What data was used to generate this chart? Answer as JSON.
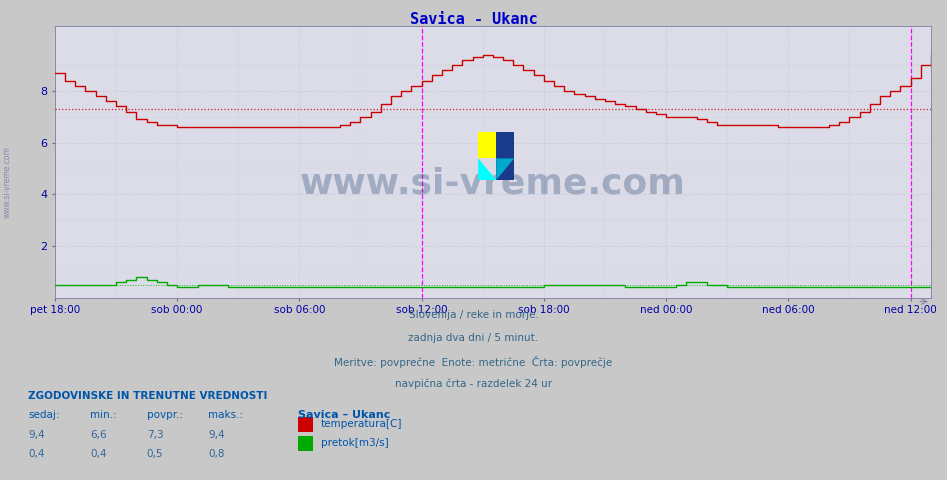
{
  "title": "Savica - Ukanc",
  "title_color": "#0000cc",
  "bg_color": "#c8c8c8",
  "plot_bg_color": "#dcdce8",
  "xlabels": [
    "pet 18:00",
    "sob 00:00",
    "sob 06:00",
    "sob 12:00",
    "sob 18:00",
    "ned 00:00",
    "ned 06:00",
    "ned 12:00"
  ],
  "xtick_positions": [
    0,
    72,
    144,
    216,
    288,
    360,
    432,
    504
  ],
  "ylim": [
    0,
    10.5
  ],
  "yticks": [
    2,
    4,
    6,
    8
  ],
  "tick_color": "#0000aa",
  "avg_temp": 7.3,
  "avg_flow": 0.5,
  "vline1_x": 216,
  "vline2_x": 504,
  "watermark": "www.si-vreme.com",
  "watermark_color": "#1a3a6b",
  "watermark_alpha": 0.3,
  "subtitle_lines": [
    "Slovenija / reke in morje.",
    "zadnja dva dni / 5 minut.",
    "Meritve: povprečne  Enote: metrične  Črta: povprečje",
    "navpična črta - razdelek 24 ur"
  ],
  "stats_header": "ZGODOVINSKE IN TRENUTNE VREDNOSTI",
  "stats_col_headers": [
    "sedaj:",
    "min.:",
    "povpr.:",
    "maks.:"
  ],
  "stats_row1": [
    "9,4",
    "6,6",
    "7,3",
    "9,4"
  ],
  "stats_row2": [
    "0,4",
    "0,4",
    "0,5",
    "0,8"
  ],
  "legend_labels": [
    "temperatura[C]",
    "pretok[m3/s]"
  ],
  "legend_colors": [
    "#cc0000",
    "#00aa00"
  ],
  "station_label": "Savica – Ukanc",
  "temp_color": "#cc0000",
  "flow_color": "#00aa00",
  "avg_temp_line_color": "#cc0000",
  "avg_flow_line_color": "#00aa00",
  "temp_data_x": [
    0,
    6,
    12,
    18,
    24,
    30,
    36,
    42,
    48,
    54,
    60,
    66,
    72,
    78,
    84,
    90,
    96,
    102,
    108,
    114,
    120,
    126,
    132,
    138,
    144,
    150,
    156,
    162,
    168,
    174,
    180,
    186,
    192,
    198,
    204,
    210,
    216,
    222,
    228,
    234,
    240,
    246,
    252,
    258,
    264,
    270,
    276,
    282,
    288,
    294,
    300,
    306,
    312,
    318,
    324,
    330,
    336,
    342,
    348,
    354,
    360,
    366,
    372,
    378,
    384,
    390,
    396,
    402,
    408,
    414,
    420,
    426,
    432,
    438,
    444,
    450,
    456,
    462,
    468,
    474,
    480,
    486,
    492,
    498,
    504,
    510,
    516
  ],
  "temp_data_y": [
    8.7,
    8.4,
    8.2,
    8.0,
    7.8,
    7.6,
    7.4,
    7.2,
    6.9,
    6.8,
    6.7,
    6.7,
    6.6,
    6.6,
    6.6,
    6.6,
    6.6,
    6.6,
    6.6,
    6.6,
    6.6,
    6.6,
    6.6,
    6.6,
    6.6,
    6.6,
    6.6,
    6.6,
    6.7,
    6.8,
    7.0,
    7.2,
    7.5,
    7.8,
    8.0,
    8.2,
    8.4,
    8.6,
    8.8,
    9.0,
    9.2,
    9.3,
    9.4,
    9.3,
    9.2,
    9.0,
    8.8,
    8.6,
    8.4,
    8.2,
    8.0,
    7.9,
    7.8,
    7.7,
    7.6,
    7.5,
    7.4,
    7.3,
    7.2,
    7.1,
    7.0,
    7.0,
    7.0,
    6.9,
    6.8,
    6.7,
    6.7,
    6.7,
    6.7,
    6.7,
    6.7,
    6.6,
    6.6,
    6.6,
    6.6,
    6.6,
    6.7,
    6.8,
    7.0,
    7.2,
    7.5,
    7.8,
    8.0,
    8.2,
    8.5,
    9.0,
    9.4
  ],
  "flow_data_x": [
    0,
    6,
    12,
    18,
    24,
    30,
    36,
    42,
    48,
    54,
    60,
    66,
    72,
    78,
    84,
    90,
    96,
    102,
    108,
    114,
    120,
    126,
    132,
    138,
    144,
    150,
    156,
    162,
    168,
    174,
    180,
    186,
    192,
    198,
    204,
    210,
    216,
    222,
    228,
    234,
    240,
    246,
    252,
    258,
    264,
    270,
    276,
    282,
    288,
    294,
    300,
    306,
    312,
    318,
    324,
    330,
    336,
    342,
    348,
    354,
    360,
    366,
    372,
    378,
    384,
    390,
    396,
    402,
    408,
    414,
    420,
    426,
    432,
    438,
    444,
    450,
    456,
    462,
    468,
    474,
    480,
    486,
    492,
    498,
    504,
    510,
    516
  ],
  "flow_data_y": [
    0.5,
    0.5,
    0.5,
    0.5,
    0.5,
    0.5,
    0.6,
    0.7,
    0.8,
    0.7,
    0.6,
    0.5,
    0.4,
    0.4,
    0.5,
    0.5,
    0.5,
    0.4,
    0.4,
    0.4,
    0.4,
    0.4,
    0.4,
    0.4,
    0.4,
    0.4,
    0.4,
    0.4,
    0.4,
    0.4,
    0.4,
    0.4,
    0.4,
    0.4,
    0.4,
    0.4,
    0.4,
    0.4,
    0.4,
    0.4,
    0.4,
    0.4,
    0.4,
    0.4,
    0.4,
    0.4,
    0.4,
    0.4,
    0.5,
    0.5,
    0.5,
    0.5,
    0.5,
    0.5,
    0.5,
    0.5,
    0.4,
    0.4,
    0.4,
    0.4,
    0.4,
    0.5,
    0.6,
    0.6,
    0.5,
    0.5,
    0.4,
    0.4,
    0.4,
    0.4,
    0.4,
    0.4,
    0.4,
    0.4,
    0.4,
    0.4,
    0.4,
    0.4,
    0.4,
    0.4,
    0.4,
    0.4,
    0.4,
    0.4,
    0.4,
    0.4,
    0.4
  ]
}
